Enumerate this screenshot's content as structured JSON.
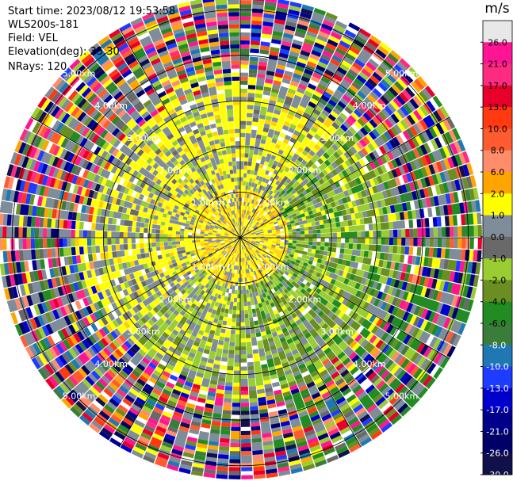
{
  "header": {
    "start_time": "Start time: 2023/08/12 19:53:58",
    "instrument": "WLS200s-181",
    "field": "Field: VEL",
    "elevation": "Elevation(deg): 35.30",
    "nrays": "NRays: 120"
  },
  "chart_data": {
    "type": "heatmap",
    "projection": "polar-ppi",
    "field": "VEL",
    "units": "m/s",
    "n_rays": 120,
    "range_rings": [
      {
        "label": "1.00km",
        "km": 1.0
      },
      {
        "label": "2.00km",
        "km": 2.0
      },
      {
        "label": "3.00km",
        "km": 3.0
      },
      {
        "label": "4.00km",
        "km": 4.0
      },
      {
        "label": "5.00km",
        "km": 5.0
      }
    ],
    "max_range_km": 5.3,
    "colorbar": {
      "label": "m/s",
      "ticks": [
        "26.0",
        "21.0",
        "17.0",
        "13.0",
        "10.0",
        "8.0",
        "6.0",
        "2.0",
        "1.0",
        "0.0",
        "-1.0",
        "-2.0",
        "-4.0",
        "-6.0",
        "-8.0",
        "-10.0",
        "-13.0",
        "-17.0",
        "-21.0",
        "-26.0",
        "-30.0"
      ],
      "bins": [
        {
          "color": "#e8e8e8"
        },
        {
          "color": "#ff1493"
        },
        {
          "color": "#ff2b80"
        },
        {
          "color": "#e8002a"
        },
        {
          "color": "#ff3a10"
        },
        {
          "color": "#ff5b30"
        },
        {
          "color": "#ff8c6a"
        },
        {
          "color": "#ffa500"
        },
        {
          "color": "#ffff00"
        },
        {
          "color": "#7f8c99"
        },
        {
          "color": "#696969"
        },
        {
          "color": "#9acd32"
        },
        {
          "color": "#6b8e23"
        },
        {
          "color": "#228b22"
        },
        {
          "color": "#3a7d3a"
        },
        {
          "color": "#1f78b4"
        },
        {
          "color": "#1e3cff"
        },
        {
          "color": "#0000cd"
        },
        {
          "color": "#00008b"
        },
        {
          "color": "#000066"
        },
        {
          "color": "#10104a"
        }
      ]
    }
  }
}
